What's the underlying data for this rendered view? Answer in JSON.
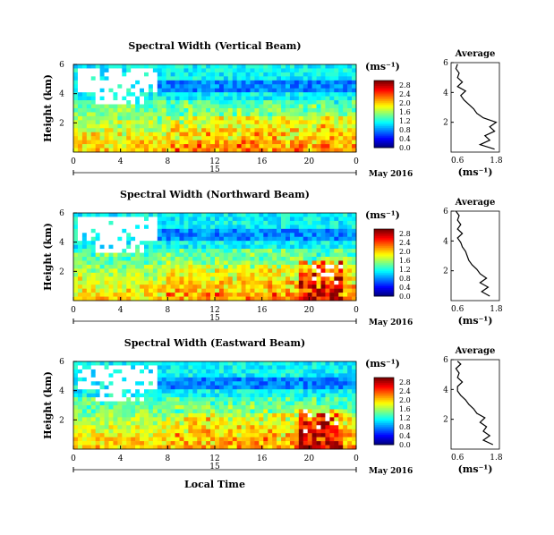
{
  "chart_data": [
    {
      "type": "heatmap",
      "title": "Spectral Width (Vertical Beam)",
      "ylabel": "Height (km)",
      "x_ticks": [
        "0",
        "4",
        "8",
        "12",
        "16",
        "20",
        "0"
      ],
      "x_range": [
        0,
        24
      ],
      "y_ticks": [
        "2",
        "4",
        "6"
      ],
      "y_range": [
        0,
        6
      ],
      "date_marker": "15",
      "date_label": "May 2016",
      "colorbar": {
        "unit": "(ms⁻¹)",
        "ticks": [
          "0.0",
          "0.4",
          "0.8",
          "1.2",
          "1.6",
          "2.0",
          "2.4",
          "2.8"
        ],
        "range": [
          0,
          3.0
        ]
      },
      "average_profile": {
        "title": "Average",
        "xlabel": "(ms⁻¹)",
        "x_ticks": [
          "0.6",
          "1.8"
        ],
        "y_ticks": [
          "2",
          "4",
          "6"
        ],
        "x_range": [
          0.4,
          1.9
        ],
        "y_range": [
          0,
          6
        ],
        "points": [
          [
            1.75,
            0.2
          ],
          [
            1.3,
            0.5
          ],
          [
            1.6,
            0.8
          ],
          [
            1.45,
            1.1
          ],
          [
            1.75,
            1.4
          ],
          [
            1.6,
            1.7
          ],
          [
            1.8,
            2.0
          ],
          [
            1.4,
            2.3
          ],
          [
            1.2,
            2.6
          ],
          [
            1.1,
            2.9
          ],
          [
            0.95,
            3.2
          ],
          [
            0.8,
            3.5
          ],
          [
            0.7,
            3.8
          ],
          [
            0.85,
            4.1
          ],
          [
            0.6,
            4.4
          ],
          [
            0.75,
            4.7
          ],
          [
            0.6,
            5.0
          ],
          [
            0.65,
            5.3
          ],
          [
            0.55,
            5.6
          ],
          [
            0.6,
            5.9
          ]
        ]
      }
    },
    {
      "type": "heatmap",
      "title": "Spectral Width (Northward Beam)",
      "ylabel": "Height (km)",
      "x_ticks": [
        "0",
        "4",
        "8",
        "12",
        "16",
        "20",
        "0"
      ],
      "x_range": [
        0,
        24
      ],
      "y_ticks": [
        "2",
        "4",
        "6"
      ],
      "y_range": [
        0,
        6
      ],
      "date_marker": "15",
      "date_label": "May 2016",
      "colorbar": {
        "unit": "(ms⁻¹)",
        "ticks": [
          "0.0",
          "0.4",
          "0.8",
          "1.2",
          "1.6",
          "2.0",
          "2.4",
          "2.8"
        ],
        "range": [
          0,
          3.0
        ]
      },
      "average_profile": {
        "title": "Average",
        "xlabel": "(ms⁻¹)",
        "x_ticks": [
          "0.6",
          "1.8"
        ],
        "y_ticks": [
          "2",
          "4",
          "6"
        ],
        "x_range": [
          0.4,
          1.9
        ],
        "y_range": [
          0,
          6
        ],
        "points": [
          [
            1.6,
            0.3
          ],
          [
            1.35,
            0.6
          ],
          [
            1.55,
            0.9
          ],
          [
            1.3,
            1.2
          ],
          [
            1.5,
            1.5
          ],
          [
            1.3,
            1.8
          ],
          [
            1.2,
            2.1
          ],
          [
            1.05,
            2.4
          ],
          [
            0.95,
            2.7
          ],
          [
            0.9,
            3.0
          ],
          [
            0.85,
            3.3
          ],
          [
            0.75,
            3.6
          ],
          [
            0.7,
            3.9
          ],
          [
            0.6,
            4.2
          ],
          [
            0.75,
            4.5
          ],
          [
            0.6,
            4.8
          ],
          [
            0.7,
            5.1
          ],
          [
            0.6,
            5.4
          ],
          [
            0.65,
            5.7
          ],
          [
            0.55,
            6.0
          ]
        ]
      }
    },
    {
      "type": "heatmap",
      "title": "Spectral Width (Eastward Beam)",
      "ylabel": "Height (km)",
      "xlabel": "Local Time",
      "x_ticks": [
        "0",
        "4",
        "8",
        "12",
        "16",
        "20",
        "0"
      ],
      "x_range": [
        0,
        24
      ],
      "y_ticks": [
        "2",
        "4",
        "6"
      ],
      "y_range": [
        0,
        6
      ],
      "date_marker": "15",
      "date_label": "May 2016",
      "colorbar": {
        "unit": "(ms⁻¹)",
        "ticks": [
          "0.0",
          "0.4",
          "0.8",
          "1.2",
          "1.6",
          "2.0",
          "2.4",
          "2.8"
        ],
        "range": [
          0,
          3.0
        ]
      },
      "average_profile": {
        "title": "Average",
        "xlabel": "(ms⁻¹)",
        "x_ticks": [
          "0.6",
          "1.8"
        ],
        "y_ticks": [
          "2",
          "4",
          "6"
        ],
        "x_range": [
          0.4,
          1.9
        ],
        "y_range": [
          0,
          6
        ],
        "points": [
          [
            1.7,
            0.3
          ],
          [
            1.4,
            0.6
          ],
          [
            1.6,
            0.9
          ],
          [
            1.4,
            1.2
          ],
          [
            1.5,
            1.5
          ],
          [
            1.3,
            1.8
          ],
          [
            1.45,
            2.1
          ],
          [
            1.2,
            2.4
          ],
          [
            1.1,
            2.7
          ],
          [
            0.95,
            3.0
          ],
          [
            0.85,
            3.3
          ],
          [
            0.7,
            3.6
          ],
          [
            0.6,
            3.9
          ],
          [
            0.6,
            4.2
          ],
          [
            0.75,
            4.5
          ],
          [
            0.6,
            4.8
          ],
          [
            0.65,
            5.1
          ],
          [
            0.55,
            5.4
          ],
          [
            0.7,
            5.7
          ],
          [
            0.6,
            5.9
          ]
        ]
      }
    }
  ]
}
